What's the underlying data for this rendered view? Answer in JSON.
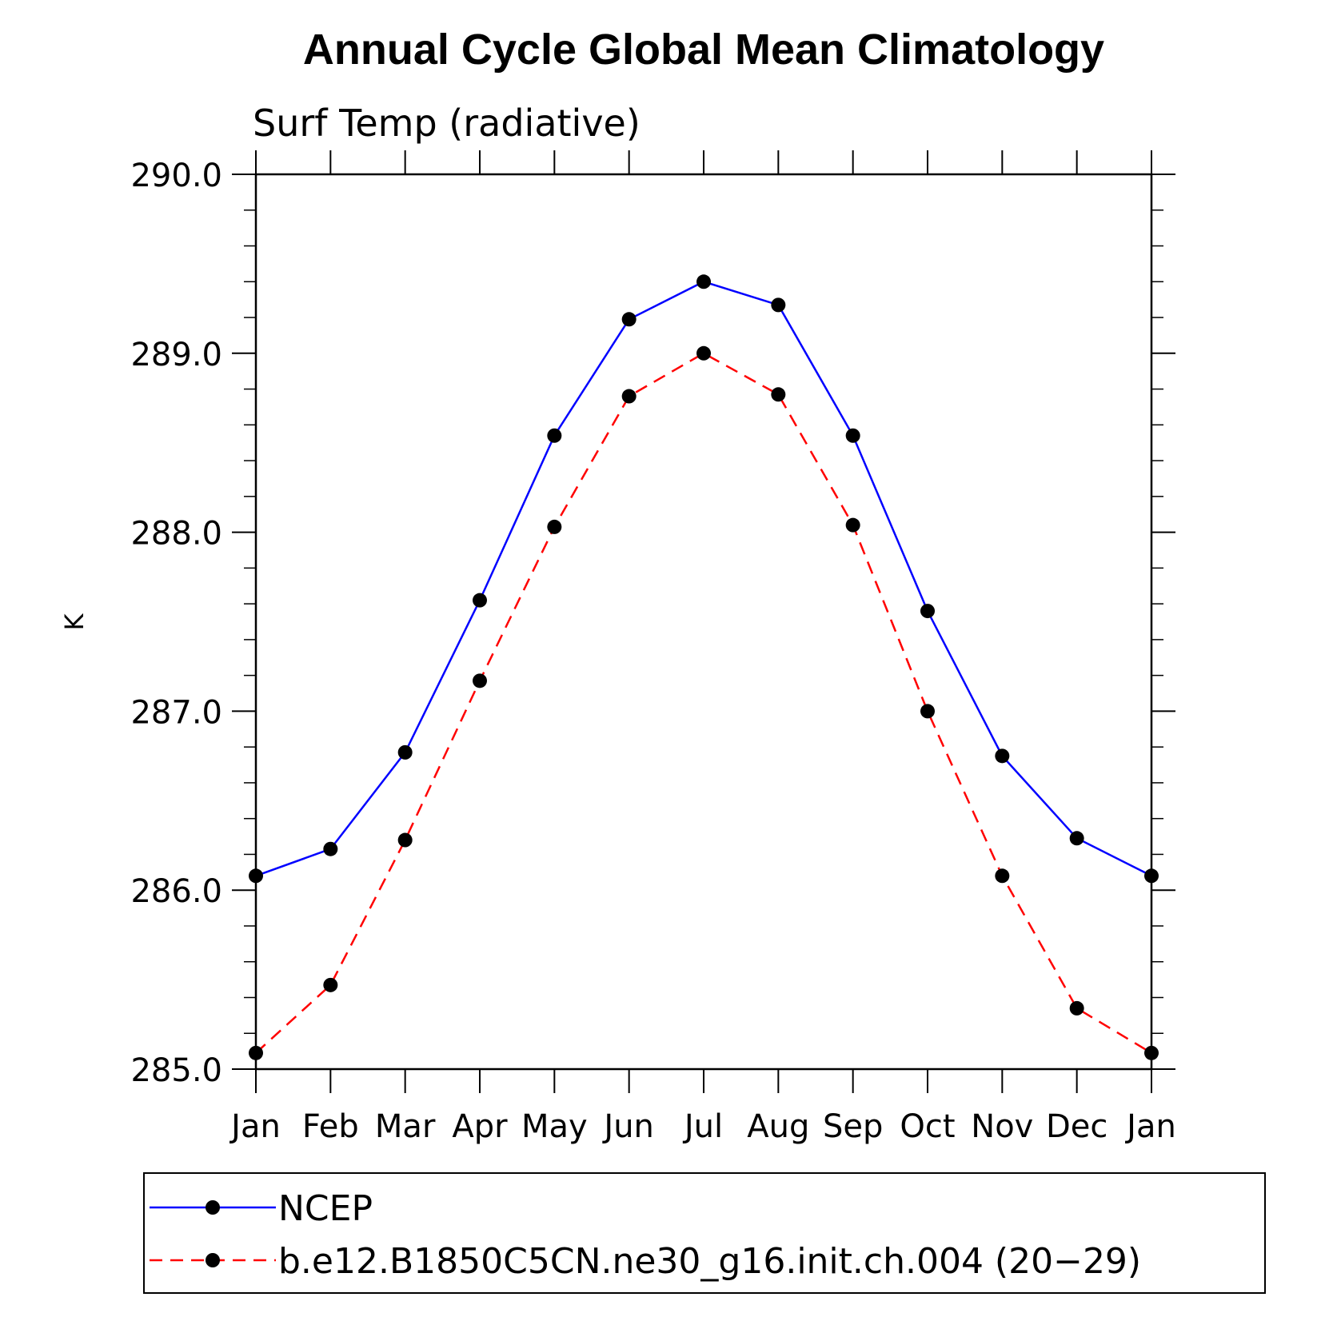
{
  "chart_data": {
    "type": "line",
    "title": "Annual Cycle Global Mean Climatology",
    "subtitle": "Surf Temp (radiative)",
    "ylabel": "K",
    "xlabel": "",
    "categories": [
      "Jan",
      "Feb",
      "Mar",
      "Apr",
      "May",
      "Jun",
      "Jul",
      "Aug",
      "Sep",
      "Oct",
      "Nov",
      "Dec",
      "Jan"
    ],
    "ylim": [
      285.0,
      290.0
    ],
    "yticks": [
      "285.0",
      "286.0",
      "287.0",
      "288.0",
      "289.0",
      "290.0"
    ],
    "grid": false,
    "legend_position": "bottom",
    "series": [
      {
        "name": "NCEP",
        "color": "#0000ff",
        "line_style": "solid",
        "marker": "filled-circle",
        "values": [
          286.08,
          286.23,
          286.77,
          287.62,
          288.54,
          289.19,
          289.4,
          289.27,
          288.54,
          287.56,
          286.75,
          286.29,
          286.08
        ]
      },
      {
        "name": "b.e12.B1850C5CN.ne30_g16.init.ch.004 (20−29)",
        "color": "#ff0000",
        "line_style": "dashed",
        "marker": "filled-circle",
        "values": [
          285.09,
          285.47,
          286.28,
          287.17,
          288.03,
          288.76,
          289.0,
          288.77,
          288.04,
          287.0,
          286.08,
          285.34,
          285.09
        ]
      }
    ]
  }
}
